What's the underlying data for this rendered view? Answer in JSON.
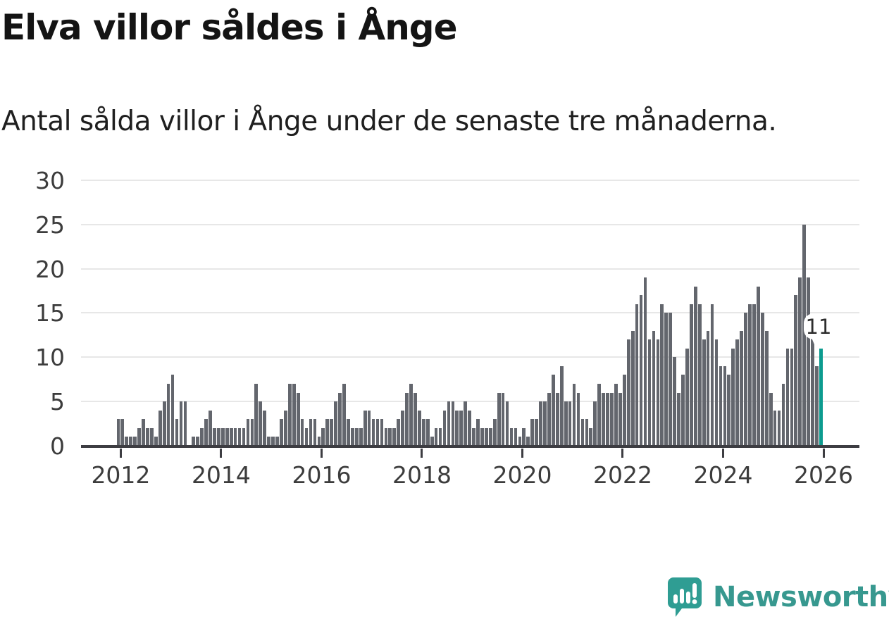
{
  "header": {
    "title": "Elva villor såldes i Ånge",
    "subtitle": "Antal sålda villor i Ånge under de senaste tre månaderna."
  },
  "chart_data": {
    "type": "bar",
    "title": "Elva villor såldes i Ånge",
    "subtitle": "Antal sålda villor i Ånge under de senaste tre månaderna.",
    "ylabel": "",
    "xlabel": "",
    "ylim": [
      0,
      30
    ],
    "grid": true,
    "start_month": "2011-12",
    "values_by_year": {
      "2011": [
        3
      ],
      "2012": [
        3,
        1,
        1,
        1,
        2,
        3,
        2,
        2,
        1,
        4,
        5,
        7
      ],
      "2013": [
        8,
        3,
        5,
        5,
        0,
        1,
        1,
        2,
        3,
        4,
        2,
        2
      ],
      "2014": [
        2,
        2,
        2,
        2,
        2,
        2,
        3,
        3,
        7,
        5,
        4,
        1
      ],
      "2015": [
        1,
        1,
        3,
        4,
        7,
        7,
        6,
        3,
        2,
        3,
        3,
        1
      ],
      "2016": [
        2,
        3,
        3,
        5,
        6,
        7,
        3,
        2,
        2,
        2,
        4,
        4
      ],
      "2017": [
        3,
        3,
        3,
        2,
        2,
        2,
        3,
        4,
        6,
        7,
        6,
        4
      ],
      "2018": [
        3,
        3,
        1,
        2,
        2,
        4,
        5,
        5,
        4,
        4,
        5,
        4
      ],
      "2019": [
        2,
        3,
        2,
        2,
        2,
        3,
        6,
        6,
        5,
        2,
        2,
        1
      ],
      "2020": [
        2,
        1,
        3,
        3,
        5,
        5,
        6,
        8,
        6,
        9,
        5,
        5
      ],
      "2021": [
        7,
        6,
        3,
        3,
        2,
        5,
        7,
        6,
        6,
        6,
        7,
        6
      ],
      "2022": [
        8,
        12,
        13,
        16,
        17,
        19,
        12,
        13,
        12,
        16,
        15,
        15
      ],
      "2023": [
        10,
        6,
        8,
        11,
        16,
        18,
        16,
        12,
        13,
        16,
        12,
        9
      ],
      "2024": [
        9,
        8,
        11,
        12,
        13,
        15,
        16,
        16,
        18,
        15,
        13,
        6
      ],
      "2025": [
        4,
        4,
        7,
        11,
        11,
        17,
        19,
        25,
        19,
        13,
        9,
        11
      ]
    },
    "highlight": {
      "position": "last",
      "value": 11,
      "label": "11",
      "color": "#0c9b8f"
    },
    "bar_color": "#63666d",
    "y_axis": {
      "ticks": [
        0,
        5,
        10,
        15,
        20,
        25,
        30
      ]
    },
    "x_axis": {
      "tick_years": [
        2012,
        2014,
        2016,
        2018,
        2020,
        2022,
        2024,
        2026
      ]
    },
    "legend": null
  },
  "annotation": {
    "value_label": "11"
  },
  "footer": {
    "brand": "Newsworthy"
  },
  "colors": {
    "background": "#ffffff",
    "bar": "#63666d",
    "highlight": "#0c9b8f",
    "gridline": "#e7e7e7",
    "axis": "#3d3d42",
    "text": "#1f1f1f",
    "brand": "#37988f"
  }
}
